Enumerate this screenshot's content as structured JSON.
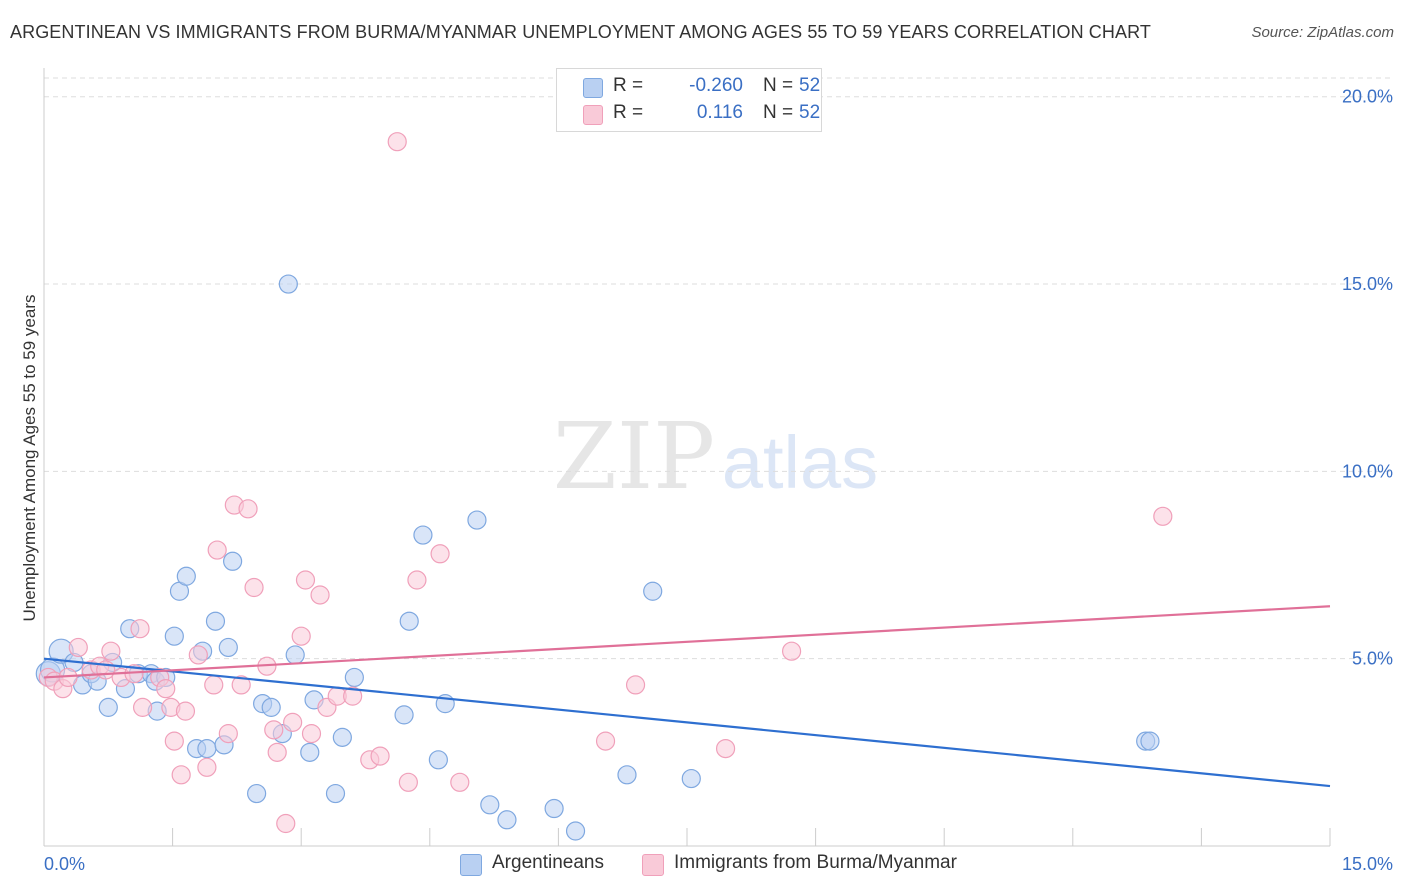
{
  "title": "ARGENTINEAN VS IMMIGRANTS FROM BURMA/MYANMAR UNEMPLOYMENT AMONG AGES 55 TO 59 YEARS CORRELATION CHART",
  "source": "Source: ZipAtlas.com",
  "watermark": {
    "zip": "ZIP",
    "atlas": "atlas"
  },
  "legend_top": {
    "rows": [
      {
        "r_label": "R =",
        "r_value": "-0.260",
        "n_label": "N =",
        "n_value": "52"
      },
      {
        "r_label": "R =",
        "r_value": "0.116",
        "n_label": "N =",
        "n_value": "52"
      }
    ]
  },
  "chart_data": {
    "type": "scatter",
    "title": "ARGENTINEAN VS IMMIGRANTS FROM BURMA/MYANMAR UNEMPLOYMENT AMONG AGES 55 TO 59 YEARS CORRELATION CHART",
    "xlabel": "",
    "ylabel": "Unemployment Among Ages 55 to 59 years",
    "xlim": [
      0,
      15
    ],
    "ylim": [
      0,
      20
    ],
    "x_tick_labels": [
      "0.0%",
      "15.0%"
    ],
    "y_ticks": [
      5,
      10,
      15,
      20
    ],
    "y_tick_labels": [
      "5.0%",
      "10.0%",
      "15.0%",
      "20.0%"
    ],
    "grid": true,
    "legend_position": "top-center",
    "series": [
      {
        "name": "Argentineans",
        "color": "#7fa8e0",
        "fill": "#b9d0f2",
        "trend": {
          "x0": 0,
          "y0": 5.0,
          "x1": 15,
          "y1": 1.6,
          "color": "#2e6fd0"
        },
        "points": [
          [
            0.05,
            4.6
          ],
          [
            0.1,
            4.7
          ],
          [
            0.2,
            5.2
          ],
          [
            0.35,
            4.9
          ],
          [
            0.45,
            4.3
          ],
          [
            0.55,
            4.6
          ],
          [
            0.62,
            4.4
          ],
          [
            0.8,
            4.9
          ],
          [
            0.75,
            3.7
          ],
          [
            0.95,
            4.2
          ],
          [
            1.0,
            5.8
          ],
          [
            1.1,
            4.6
          ],
          [
            1.25,
            4.6
          ],
          [
            1.3,
            4.4
          ],
          [
            1.32,
            3.6
          ],
          [
            1.42,
            4.5
          ],
          [
            1.52,
            5.6
          ],
          [
            1.58,
            6.8
          ],
          [
            1.66,
            7.2
          ],
          [
            1.78,
            2.6
          ],
          [
            1.9,
            2.6
          ],
          [
            1.85,
            5.2
          ],
          [
            2.0,
            6.0
          ],
          [
            2.1,
            2.7
          ],
          [
            2.15,
            5.3
          ],
          [
            2.2,
            7.6
          ],
          [
            2.48,
            1.4
          ],
          [
            2.55,
            3.8
          ],
          [
            2.65,
            3.7
          ],
          [
            2.78,
            3.0
          ],
          [
            2.85,
            15.0
          ],
          [
            2.93,
            5.1
          ],
          [
            3.1,
            2.5
          ],
          [
            3.15,
            3.9
          ],
          [
            3.4,
            1.4
          ],
          [
            3.48,
            2.9
          ],
          [
            3.62,
            4.5
          ],
          [
            4.2,
            3.5
          ],
          [
            4.26,
            6.0
          ],
          [
            4.42,
            8.3
          ],
          [
            4.6,
            2.3
          ],
          [
            4.68,
            3.8
          ],
          [
            5.05,
            8.7
          ],
          [
            5.2,
            1.1
          ],
          [
            5.4,
            0.7
          ],
          [
            5.95,
            1.0
          ],
          [
            6.2,
            0.4
          ],
          [
            6.8,
            1.9
          ],
          [
            7.1,
            6.8
          ],
          [
            7.55,
            1.8
          ],
          [
            12.85,
            2.8
          ],
          [
            12.9,
            2.8
          ]
        ]
      },
      {
        "name": "Immigrants from Burma/Myanmar",
        "color": "#f0a0ba",
        "fill": "#f9cad8",
        "trend": {
          "x0": 0,
          "y0": 4.5,
          "x1": 15,
          "y1": 6.4,
          "color": "#e07098"
        },
        "points": [
          [
            0.05,
            4.5
          ],
          [
            0.12,
            4.4
          ],
          [
            0.22,
            4.2
          ],
          [
            0.28,
            4.5
          ],
          [
            0.4,
            5.3
          ],
          [
            0.55,
            4.7
          ],
          [
            0.65,
            4.8
          ],
          [
            0.72,
            4.7
          ],
          [
            0.78,
            5.2
          ],
          [
            0.9,
            4.5
          ],
          [
            1.05,
            4.6
          ],
          [
            1.12,
            5.8
          ],
          [
            1.15,
            3.7
          ],
          [
            1.35,
            4.5
          ],
          [
            1.42,
            4.2
          ],
          [
            1.48,
            3.7
          ],
          [
            1.52,
            2.8
          ],
          [
            1.6,
            1.9
          ],
          [
            1.65,
            3.6
          ],
          [
            1.8,
            5.1
          ],
          [
            1.9,
            2.1
          ],
          [
            1.98,
            4.3
          ],
          [
            2.02,
            7.9
          ],
          [
            2.15,
            3.0
          ],
          [
            2.22,
            9.1
          ],
          [
            2.3,
            4.3
          ],
          [
            2.38,
            9.0
          ],
          [
            2.45,
            6.9
          ],
          [
            2.6,
            4.8
          ],
          [
            2.68,
            3.1
          ],
          [
            2.72,
            2.5
          ],
          [
            2.82,
            0.6
          ],
          [
            2.9,
            3.3
          ],
          [
            3.0,
            5.6
          ],
          [
            3.05,
            7.1
          ],
          [
            3.12,
            3.0
          ],
          [
            3.22,
            6.7
          ],
          [
            3.3,
            3.7
          ],
          [
            3.42,
            4.0
          ],
          [
            3.6,
            4.0
          ],
          [
            3.8,
            2.3
          ],
          [
            3.92,
            2.4
          ],
          [
            4.12,
            18.8
          ],
          [
            4.25,
            1.7
          ],
          [
            4.35,
            7.1
          ],
          [
            4.62,
            7.8
          ],
          [
            4.85,
            1.7
          ],
          [
            6.55,
            2.8
          ],
          [
            6.9,
            4.3
          ],
          [
            7.95,
            2.6
          ],
          [
            8.72,
            5.2
          ],
          [
            13.05,
            8.8
          ]
        ]
      }
    ]
  }
}
